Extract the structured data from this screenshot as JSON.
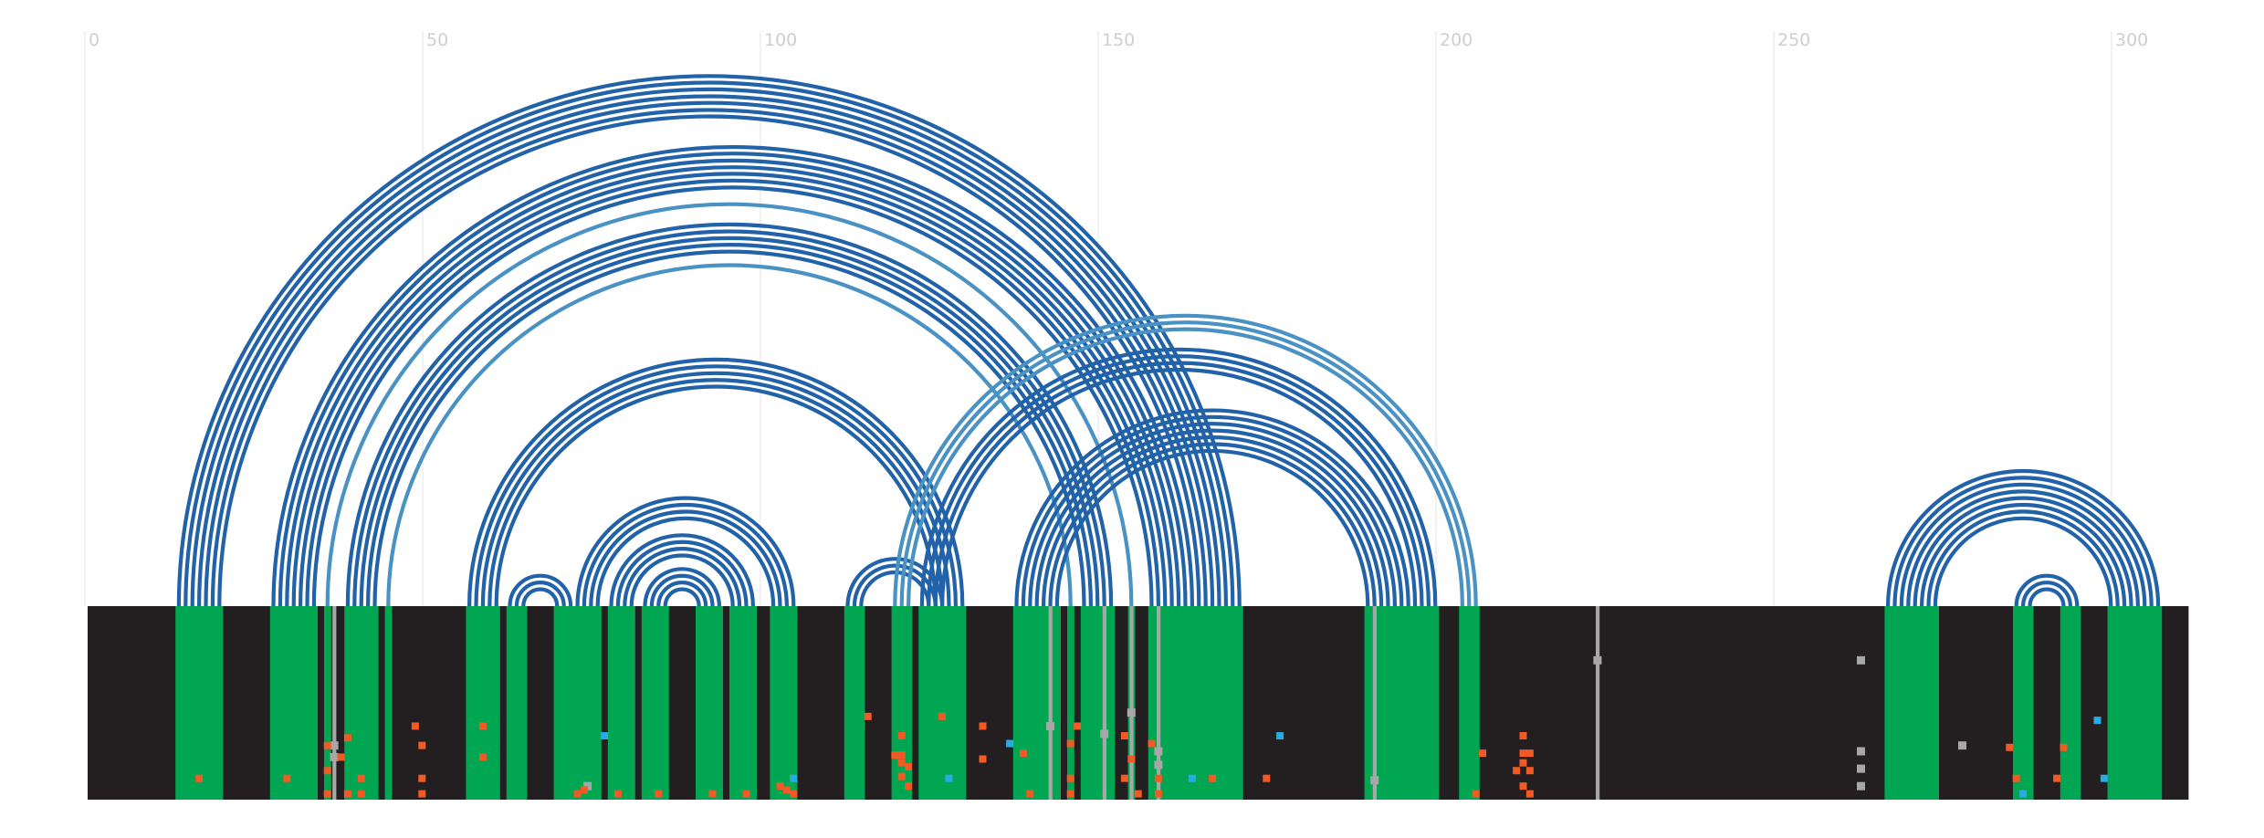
{
  "chart_data": {
    "type": "arc-diagram",
    "title": "",
    "xlabel": "",
    "ylabel": "",
    "xlim": [
      0,
      311
    ],
    "grid": true,
    "ticks": [
      {
        "value": 0,
        "label": "0"
      },
      {
        "value": 50,
        "label": "50"
      },
      {
        "value": 100,
        "label": "100"
      },
      {
        "value": 150,
        "label": "150"
      },
      {
        "value": 200,
        "label": "200"
      },
      {
        "value": 250,
        "label": "250"
      },
      {
        "value": 300,
        "label": "300"
      }
    ],
    "colors": {
      "arc_dark": "#2262a8",
      "arc_light": "#4a92c4",
      "track_background": "#231f20",
      "paired": "#00a651",
      "gap": "#a7a7a7",
      "mismatch": "#f15a24",
      "insertion": "#29abe2"
    },
    "arc_groups": [
      {
        "left": [
          13,
          19
        ],
        "right": [
          164,
          170
        ],
        "color": "dark"
      },
      {
        "left": [
          27,
          33
        ],
        "right": [
          157,
          163
        ],
        "color": "dark"
      },
      {
        "left": [
          35,
          35
        ],
        "right": [
          154,
          154
        ],
        "color": "light"
      },
      {
        "left": [
          38,
          42
        ],
        "right": [
          147,
          151
        ],
        "color": "dark"
      },
      {
        "left": [
          44,
          44
        ],
        "right": [
          145,
          145
        ],
        "color": "light"
      },
      {
        "left": [
          56,
          60
        ],
        "right": [
          125,
          129
        ],
        "color": "dark"
      },
      {
        "left": [
          62,
          64
        ],
        "right": [
          69,
          71
        ],
        "color": "dark"
      },
      {
        "left": [
          72,
          75
        ],
        "right": [
          101,
          104
        ],
        "color": "dark"
      },
      {
        "left": [
          77,
          80
        ],
        "right": [
          95,
          98
        ],
        "color": "dark"
      },
      {
        "left": [
          82,
          85
        ],
        "right": [
          90,
          93
        ],
        "color": "dark"
      },
      {
        "left": [
          112,
          114
        ],
        "right": [
          124,
          126
        ],
        "color": "dark"
      },
      {
        "left": [
          119,
          121
        ],
        "right": [
          203,
          205
        ],
        "color": "light"
      },
      {
        "left": [
          123,
          126
        ],
        "right": [
          196,
          199
        ],
        "color": "dark"
      },
      {
        "left": [
          137,
          143
        ],
        "right": [
          189,
          195
        ],
        "color": "dark"
      },
      {
        "left": [
          266,
          273
        ],
        "right": [
          299,
          306
        ],
        "color": "dark"
      },
      {
        "left": [
          285,
          287
        ],
        "right": [
          292,
          294
        ],
        "color": "dark"
      }
    ],
    "gap_columns": [
      36,
      142,
      150,
      154,
      158,
      190,
      223
    ],
    "gap_marks": [
      {
        "x": 36.5,
        "rows": [
          0.72,
          0.78
        ]
      },
      {
        "x": 142.5,
        "rows": [
          0.62
        ]
      },
      {
        "x": 150.5,
        "rows": [
          0.66
        ]
      },
      {
        "x": 154.5,
        "rows": [
          0.55
        ]
      },
      {
        "x": 158.5,
        "rows": [
          0.75,
          0.82
        ]
      },
      {
        "x": 190.5,
        "rows": [
          0.9
        ]
      },
      {
        "x": 223.5,
        "rows": [
          0.28
        ]
      },
      {
        "x": 262.5,
        "rows": [
          0.28,
          0.75,
          0.84,
          0.93
        ]
      },
      {
        "x": 277.5,
        "rows": [
          0.72
        ]
      },
      {
        "x": 74,
        "rows": [
          0.93
        ]
      }
    ],
    "mismatch_points": [
      {
        "x": 16.5,
        "y": 0.89
      },
      {
        "x": 29.5,
        "y": 0.89
      },
      {
        "x": 35.5,
        "y": 0.72
      },
      {
        "x": 35.5,
        "y": 0.85
      },
      {
        "x": 35.5,
        "y": 0.97
      },
      {
        "x": 37.5,
        "y": 0.78
      },
      {
        "x": 38.5,
        "y": 0.68
      },
      {
        "x": 38.5,
        "y": 0.97
      },
      {
        "x": 40.5,
        "y": 0.89
      },
      {
        "x": 40.5,
        "y": 0.97
      },
      {
        "x": 48.5,
        "y": 0.62
      },
      {
        "x": 49.5,
        "y": 0.72
      },
      {
        "x": 49.5,
        "y": 0.89
      },
      {
        "x": 49.5,
        "y": 0.97
      },
      {
        "x": 58.5,
        "y": 0.62
      },
      {
        "x": 58.5,
        "y": 0.78
      },
      {
        "x": 72.5,
        "y": 0.97
      },
      {
        "x": 73.5,
        "y": 0.95
      },
      {
        "x": 78.5,
        "y": 0.97
      },
      {
        "x": 84.5,
        "y": 0.97
      },
      {
        "x": 92.5,
        "y": 0.97
      },
      {
        "x": 97.5,
        "y": 0.97
      },
      {
        "x": 102.5,
        "y": 0.93
      },
      {
        "x": 103.5,
        "y": 0.95
      },
      {
        "x": 104.5,
        "y": 0.97
      },
      {
        "x": 115.5,
        "y": 0.57
      },
      {
        "x": 120.5,
        "y": 0.67
      },
      {
        "x": 119.5,
        "y": 0.77
      },
      {
        "x": 120.5,
        "y": 0.77
      },
      {
        "x": 120.5,
        "y": 0.81
      },
      {
        "x": 121.5,
        "y": 0.83
      },
      {
        "x": 120.5,
        "y": 0.88
      },
      {
        "x": 121.5,
        "y": 0.93
      },
      {
        "x": 126.5,
        "y": 0.57
      },
      {
        "x": 132.5,
        "y": 0.62
      },
      {
        "x": 132.5,
        "y": 0.79
      },
      {
        "x": 138.5,
        "y": 0.76
      },
      {
        "x": 139.5,
        "y": 0.97
      },
      {
        "x": 146.5,
        "y": 0.62
      },
      {
        "x": 145.5,
        "y": 0.71
      },
      {
        "x": 145.5,
        "y": 0.89
      },
      {
        "x": 145.5,
        "y": 0.97
      },
      {
        "x": 153.5,
        "y": 0.67
      },
      {
        "x": 154.5,
        "y": 0.79
      },
      {
        "x": 153.5,
        "y": 0.89
      },
      {
        "x": 155.5,
        "y": 0.97
      },
      {
        "x": 157.5,
        "y": 0.71
      },
      {
        "x": 158.5,
        "y": 0.89
      },
      {
        "x": 158.5,
        "y": 0.97
      },
      {
        "x": 166.5,
        "y": 0.89
      },
      {
        "x": 174.5,
        "y": 0.89
      },
      {
        "x": 206.5,
        "y": 0.76
      },
      {
        "x": 205.5,
        "y": 0.97
      },
      {
        "x": 212.5,
        "y": 0.67
      },
      {
        "x": 212.5,
        "y": 0.76
      },
      {
        "x": 213.5,
        "y": 0.76
      },
      {
        "x": 212.5,
        "y": 0.81
      },
      {
        "x": 211.5,
        "y": 0.85
      },
      {
        "x": 213.5,
        "y": 0.85
      },
      {
        "x": 212.5,
        "y": 0.93
      },
      {
        "x": 213.5,
        "y": 0.97
      },
      {
        "x": 284.5,
        "y": 0.73
      },
      {
        "x": 285.5,
        "y": 0.89
      },
      {
        "x": 292.5,
        "y": 0.73
      },
      {
        "x": 291.5,
        "y": 0.89
      }
    ],
    "insertion_points": [
      {
        "x": 76.5,
        "y": 0.67
      },
      {
        "x": 104.5,
        "y": 0.89
      },
      {
        "x": 127.5,
        "y": 0.89
      },
      {
        "x": 136.5,
        "y": 0.71
      },
      {
        "x": 163.5,
        "y": 0.89
      },
      {
        "x": 176.5,
        "y": 0.67
      },
      {
        "x": 286.5,
        "y": 0.97
      },
      {
        "x": 297.5,
        "y": 0.59
      },
      {
        "x": 298.5,
        "y": 0.89
      }
    ]
  }
}
